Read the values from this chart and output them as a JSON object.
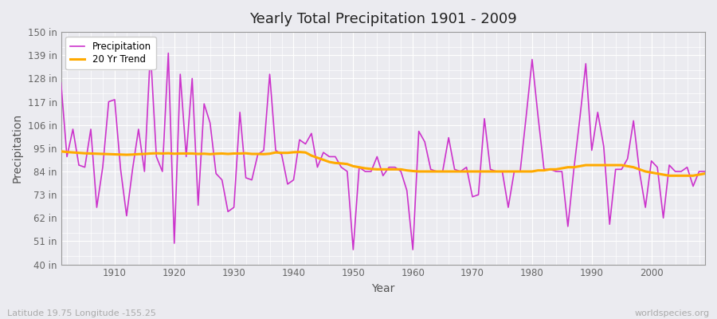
{
  "title": "Yearly Total Precipitation 1901 - 2009",
  "xlabel": "Year",
  "ylabel": "Precipitation",
  "subtitle_left": "Latitude 19.75 Longitude -155.25",
  "subtitle_right": "worldspecies.org",
  "ylim": [
    40,
    150
  ],
  "yticks": [
    40,
    51,
    62,
    73,
    84,
    95,
    106,
    117,
    128,
    139,
    150
  ],
  "ytick_labels": [
    "40 in",
    "51 in",
    "62 in",
    "73 in",
    "84 in",
    "95 in",
    "106 in",
    "117 in",
    "128 in",
    "139 in",
    "150 in"
  ],
  "xlim": [
    1901,
    2009
  ],
  "xticks": [
    1910,
    1920,
    1930,
    1940,
    1950,
    1960,
    1970,
    1980,
    1990,
    2000
  ],
  "precip_color": "#cc33cc",
  "trend_color": "#ffaa00",
  "bg_color": "#ebebf0",
  "grid_color": "#ffffff",
  "legend_entries": [
    "Precipitation",
    "20 Yr Trend"
  ],
  "years": [
    1901,
    1902,
    1903,
    1904,
    1905,
    1906,
    1907,
    1908,
    1909,
    1910,
    1911,
    1912,
    1913,
    1914,
    1915,
    1916,
    1917,
    1918,
    1919,
    1920,
    1921,
    1922,
    1923,
    1924,
    1925,
    1926,
    1927,
    1928,
    1929,
    1930,
    1931,
    1932,
    1933,
    1934,
    1935,
    1936,
    1937,
    1938,
    1939,
    1940,
    1941,
    1942,
    1943,
    1944,
    1945,
    1946,
    1947,
    1948,
    1949,
    1950,
    1951,
    1952,
    1953,
    1954,
    1955,
    1956,
    1957,
    1958,
    1959,
    1960,
    1961,
    1962,
    1963,
    1964,
    1965,
    1966,
    1967,
    1968,
    1969,
    1970,
    1971,
    1972,
    1973,
    1974,
    1975,
    1976,
    1977,
    1978,
    1979,
    1980,
    1981,
    1982,
    1983,
    1984,
    1985,
    1986,
    1987,
    1988,
    1989,
    1990,
    1991,
    1992,
    1993,
    1994,
    1995,
    1996,
    1997,
    1998,
    1999,
    2000,
    2001,
    2002,
    2003,
    2004,
    2005,
    2006,
    2007,
    2008,
    2009
  ],
  "precipitation": [
    126,
    91,
    104,
    87,
    86,
    104,
    67,
    86,
    117,
    118,
    85,
    63,
    85,
    104,
    84,
    141,
    91,
    84,
    140,
    50,
    130,
    91,
    128,
    68,
    116,
    107,
    83,
    80,
    65,
    67,
    112,
    81,
    80,
    92,
    94,
    130,
    94,
    92,
    78,
    80,
    99,
    97,
    102,
    86,
    93,
    91,
    91,
    86,
    84,
    47,
    86,
    84,
    84,
    91,
    82,
    86,
    86,
    84,
    75,
    47,
    103,
    98,
    85,
    84,
    84,
    100,
    85,
    84,
    86,
    72,
    73,
    109,
    85,
    84,
    84,
    67,
    84,
    84,
    110,
    137,
    110,
    85,
    85,
    84,
    84,
    58,
    85,
    109,
    135,
    94,
    112,
    96,
    59,
    85,
    85,
    90,
    108,
    84,
    67,
    89,
    86,
    62,
    87,
    84,
    84,
    86,
    77,
    84,
    84
  ],
  "trend": [
    93.5,
    93.2,
    93.0,
    92.8,
    92.6,
    92.5,
    92.4,
    92.3,
    92.2,
    92.1,
    92.0,
    91.9,
    92.0,
    92.2,
    92.3,
    92.5,
    92.6,
    92.5,
    92.6,
    92.4,
    92.5,
    92.5,
    92.5,
    92.3,
    92.4,
    92.2,
    92.4,
    92.5,
    92.3,
    92.5,
    92.5,
    92.6,
    92.3,
    92.3,
    92.2,
    92.4,
    93.0,
    92.8,
    92.8,
    93.1,
    93.2,
    93.0,
    91.5,
    90.5,
    89.5,
    88.5,
    88.0,
    87.8,
    87.5,
    86.5,
    86.0,
    85.5,
    85.2,
    85.0,
    85.0,
    85.0,
    85.0,
    85.0,
    84.5,
    84.2,
    84.0,
    84.0,
    84.0,
    84.0,
    84.0,
    84.0,
    84.0,
    84.0,
    84.0,
    84.0,
    84.0,
    84.0,
    84.0,
    84.0,
    84.0,
    84.0,
    84.0,
    84.0,
    84.0,
    84.0,
    84.5,
    84.5,
    85.0,
    85.0,
    85.5,
    86.0,
    86.0,
    86.5,
    87.0,
    87.0,
    87.0,
    87.0,
    87.0,
    87.0,
    87.0,
    86.5,
    86.0,
    85.0,
    84.0,
    83.5,
    83.0,
    82.5,
    82.0,
    82.0,
    82.0,
    82.0,
    82.0,
    82.5,
    83.0
  ]
}
